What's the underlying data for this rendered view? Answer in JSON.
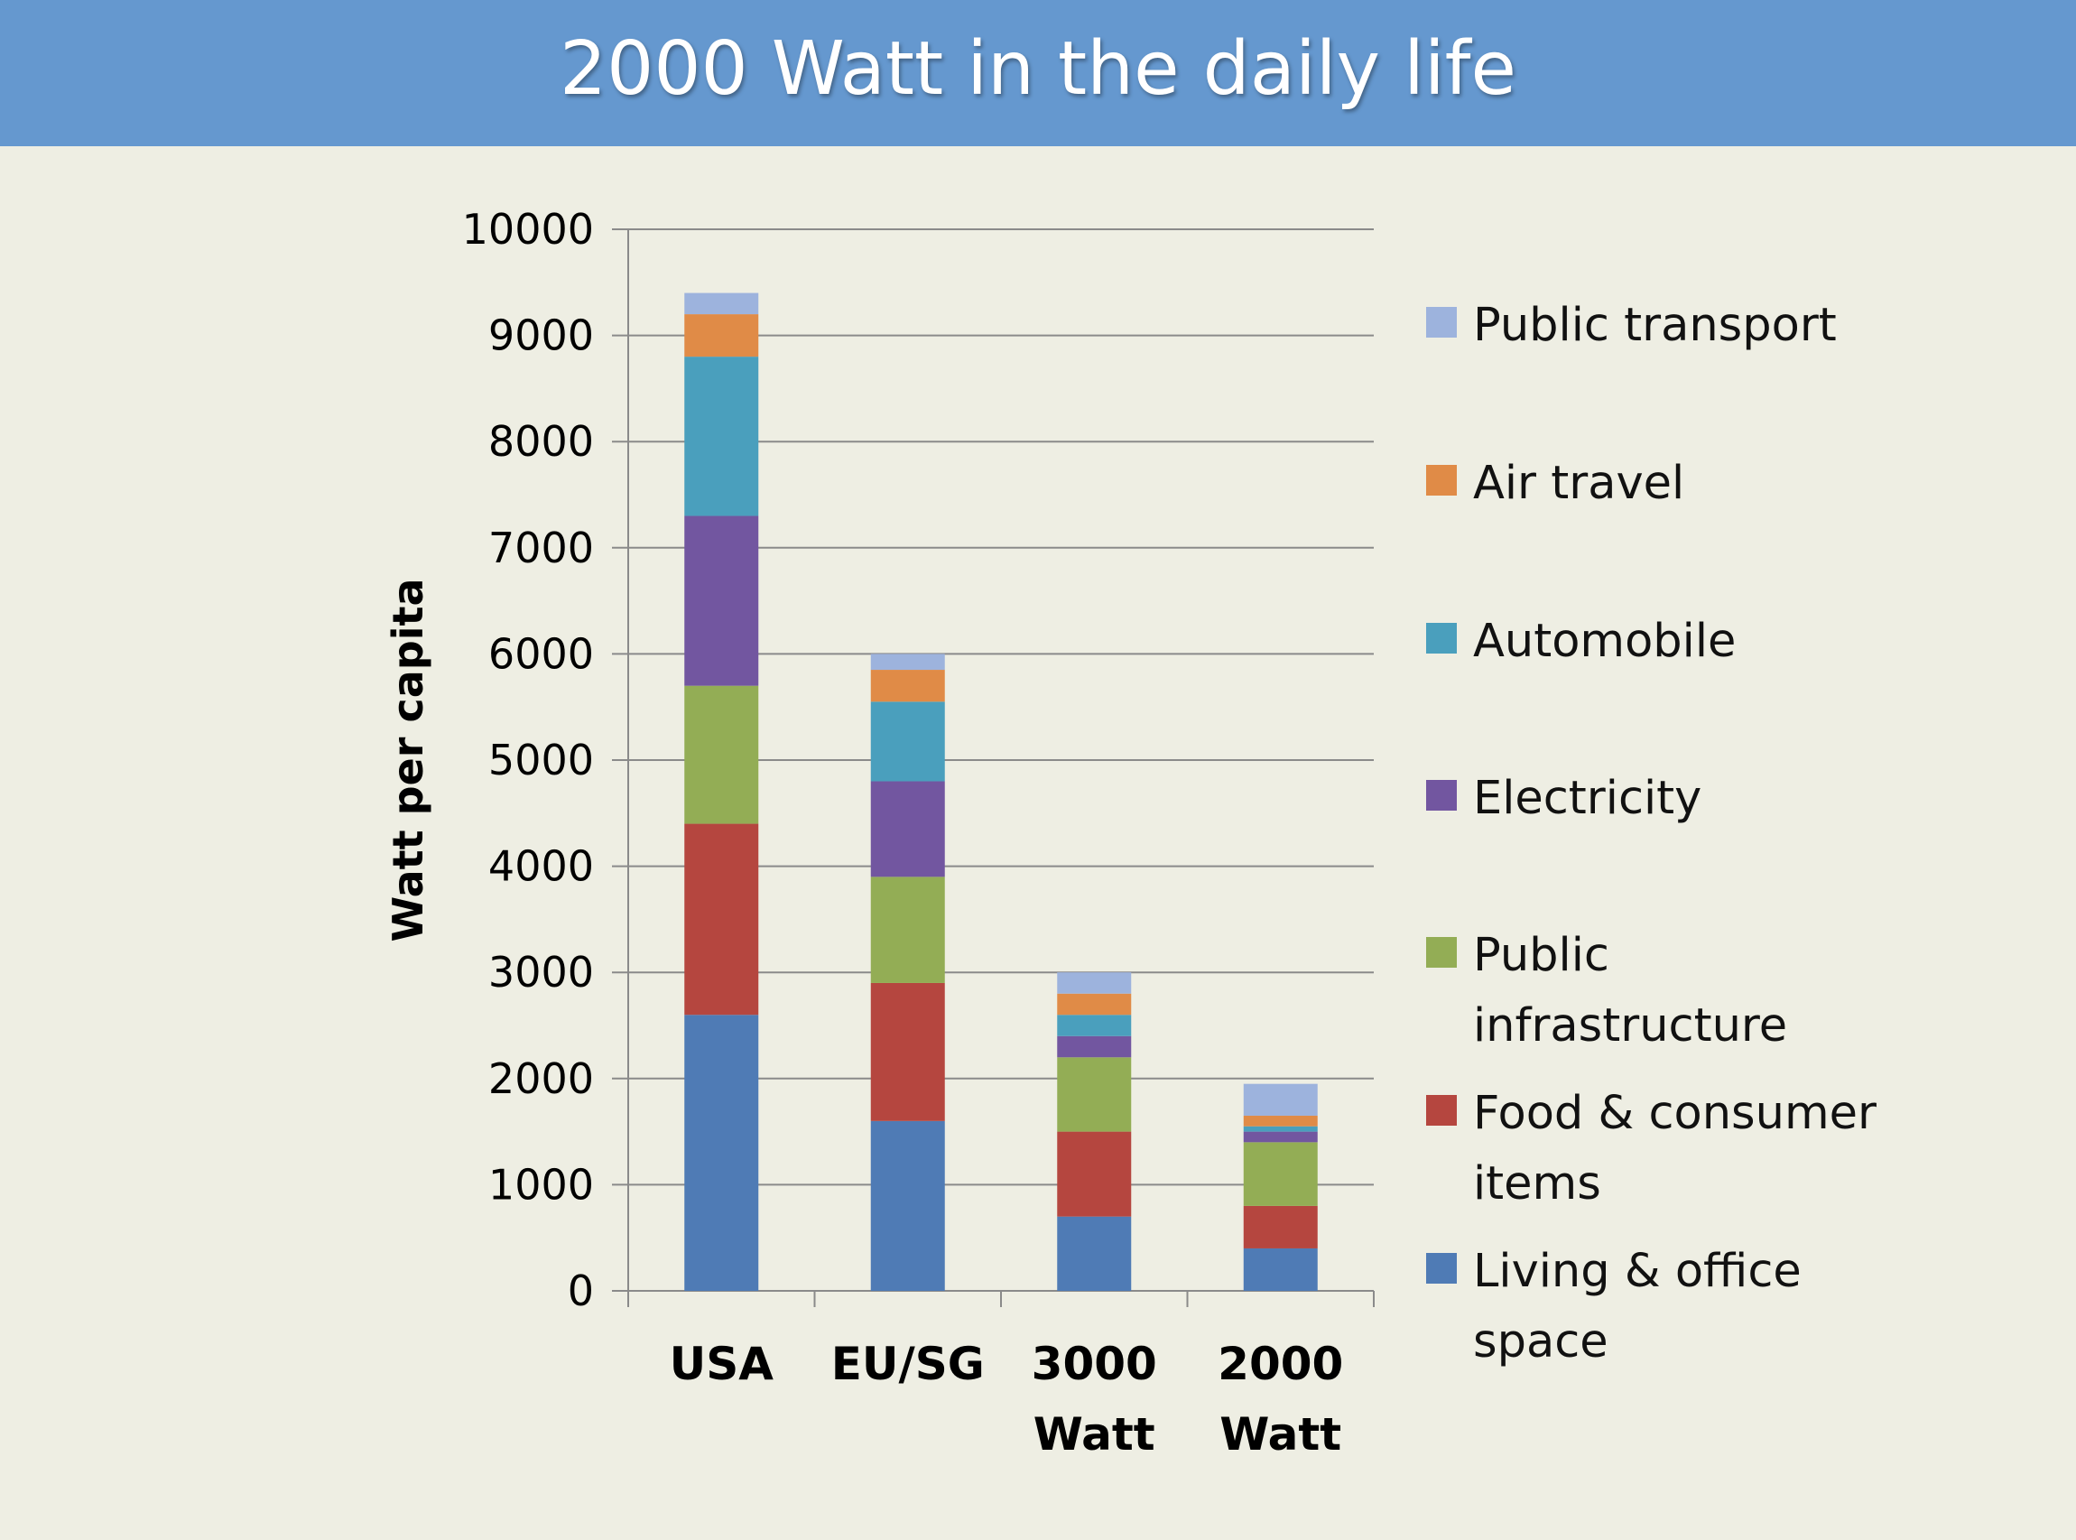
{
  "slide": {
    "title": "2000 Watt in the daily life",
    "title_bar_color": "#6598cf",
    "background_color": "#eeeee3"
  },
  "chart_data": {
    "type": "bar",
    "stacked": true,
    "title": "",
    "xlabel": "",
    "ylabel": "Watt per capita",
    "ylim": [
      0,
      10000
    ],
    "yticks": [
      0,
      1000,
      2000,
      3000,
      4000,
      5000,
      6000,
      7000,
      8000,
      9000,
      10000
    ],
    "grid": true,
    "legend_position": "right",
    "categories": [
      [
        "USA"
      ],
      [
        "EU/SG"
      ],
      [
        "3000",
        "Watt"
      ],
      [
        "2000",
        "Watt"
      ]
    ],
    "series": [
      {
        "name": [
          "Living & office",
          "space"
        ],
        "color": "#4f7bb5",
        "values": [
          2600,
          1600,
          700,
          400
        ]
      },
      {
        "name": [
          "Food & consumer",
          "items"
        ],
        "color": "#b5463f",
        "values": [
          1800,
          1300,
          800,
          400
        ]
      },
      {
        "name": [
          "Public",
          "infrastructure"
        ],
        "color": "#93ad55",
        "values": [
          1300,
          1000,
          700,
          600
        ]
      },
      {
        "name": [
          "Electricity"
        ],
        "color": "#7256a0",
        "values": [
          1600,
          900,
          200,
          100
        ]
      },
      {
        "name": [
          "Automobile"
        ],
        "color": "#4a9fbd",
        "values": [
          1500,
          750,
          200,
          50
        ]
      },
      {
        "name": [
          "Air travel"
        ],
        "color": "#e08b47",
        "values": [
          400,
          300,
          200,
          100
        ]
      },
      {
        "name": [
          "Public transport"
        ],
        "color": "#9db3dd",
        "values": [
          200,
          150,
          200,
          300
        ]
      }
    ]
  }
}
